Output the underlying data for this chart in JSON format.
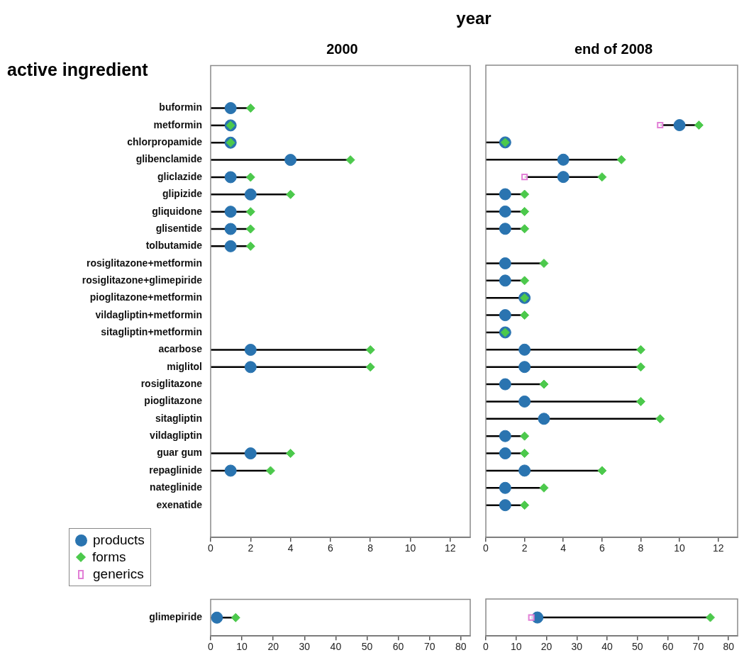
{
  "chart_data": [
    {
      "type": "scatter",
      "orientation": "horizontal",
      "title": "2000",
      "ylabel": "active ingredient",
      "annotations": [
        "year"
      ],
      "legend": "bottom left",
      "categories": [
        "buformin",
        "metformin",
        "chlorpropamide",
        "glibenclamide",
        "gliclazide",
        "glipizide",
        "gliquidone",
        "glisentide",
        "tolbutamide",
        "rosiglitazone+metformin",
        "rosiglitazone+glimepiride",
        "pioglitazone+metformin",
        "vildagliptin+metformin",
        "sitagliptin+metformin",
        "acarbose",
        "miglitol",
        "rosiglitazone",
        "pioglitazone",
        "sitagliptin",
        "vildagliptin",
        "guar gum",
        "repaglinide",
        "nateglinide",
        "exenatide"
      ],
      "xlim": [
        0,
        13
      ],
      "xticks": [
        0,
        2,
        4,
        6,
        8,
        10,
        12
      ],
      "series": [
        {
          "name": "products",
          "marker": "circle",
          "color": "#2a74b0",
          "values": [
            1,
            1,
            1,
            4,
            1,
            2,
            1,
            1,
            1,
            null,
            null,
            null,
            null,
            null,
            2,
            2,
            null,
            null,
            null,
            null,
            2,
            1,
            null,
            null
          ]
        },
        {
          "name": "forms",
          "marker": "diamond",
          "color": "#4cc94c",
          "values": [
            2,
            1,
            1,
            7,
            2,
            4,
            2,
            2,
            2,
            null,
            null,
            null,
            null,
            null,
            8,
            8,
            null,
            null,
            null,
            null,
            4,
            3,
            null,
            null
          ]
        },
        {
          "name": "generics",
          "marker": "square",
          "color": "#e27fd6",
          "values": [
            null,
            null,
            null,
            null,
            null,
            null,
            null,
            null,
            null,
            null,
            null,
            null,
            null,
            null,
            null,
            null,
            null,
            null,
            null,
            null,
            null,
            null,
            null,
            null
          ]
        }
      ]
    },
    {
      "type": "scatter",
      "orientation": "horizontal",
      "title": "end of 2008",
      "tick_labels": "x",
      "categories": [
        null,
        null,
        null,
        null,
        null,
        null,
        null,
        null,
        null,
        null,
        null,
        null,
        null,
        null,
        null,
        null,
        null,
        null,
        null,
        null,
        null,
        null,
        null,
        null
      ],
      "xlim": [
        0,
        13
      ],
      "xticks": [
        0,
        2,
        4,
        6,
        8,
        10,
        12
      ],
      "series": [
        {
          "marker": "circle",
          "color": "#2a74b0",
          "values": [
            null,
            10,
            1,
            4,
            4,
            1,
            1,
            1,
            null,
            1,
            1,
            2,
            1,
            1,
            2,
            2,
            1,
            2,
            3,
            1,
            1,
            2,
            1,
            1
          ]
        },
        {
          "marker": "diamond",
          "color": "#4cc94c",
          "values": [
            null,
            11,
            1,
            7,
            6,
            2,
            2,
            2,
            null,
            3,
            2,
            2,
            2,
            1,
            8,
            8,
            3,
            8,
            9,
            2,
            2,
            6,
            3,
            2
          ]
        },
        {
          "marker": "square",
          "color": "#e27fd6",
          "values": [
            null,
            9,
            null,
            null,
            2,
            null,
            null,
            null,
            null,
            null,
            null,
            null,
            null,
            null,
            null,
            null,
            null,
            null,
            null,
            null,
            null,
            null,
            null,
            null
          ]
        }
      ]
    },
    {
      "type": "scatter",
      "orientation": "horizontal",
      "categories": [
        "glimepiride"
      ],
      "xlim": [
        0,
        83
      ],
      "xticks": [
        0,
        10,
        20,
        30,
        40,
        50,
        60,
        70,
        80
      ],
      "series": [
        {
          "marker": "circle",
          "color": "#2a74b0",
          "values": [
            2
          ]
        },
        {
          "marker": "diamond",
          "color": "#4cc94c",
          "values": [
            8
          ]
        }
      ]
    },
    {
      "type": "scatter",
      "orientation": "horizontal",
      "tick_labels": "x",
      "categories": [
        null
      ],
      "xlim": [
        0,
        83
      ],
      "xticks": [
        0,
        10,
        20,
        30,
        40,
        50,
        60,
        70,
        80
      ],
      "series": [
        {
          "marker": "circle",
          "color": "#2a74b0",
          "values": [
            17
          ]
        },
        {
          "marker": "diamond",
          "color": "#4cc94c",
          "values": [
            74
          ]
        },
        {
          "marker": "square",
          "color": "#e27fd6",
          "values": [
            15
          ]
        }
      ]
    }
  ]
}
